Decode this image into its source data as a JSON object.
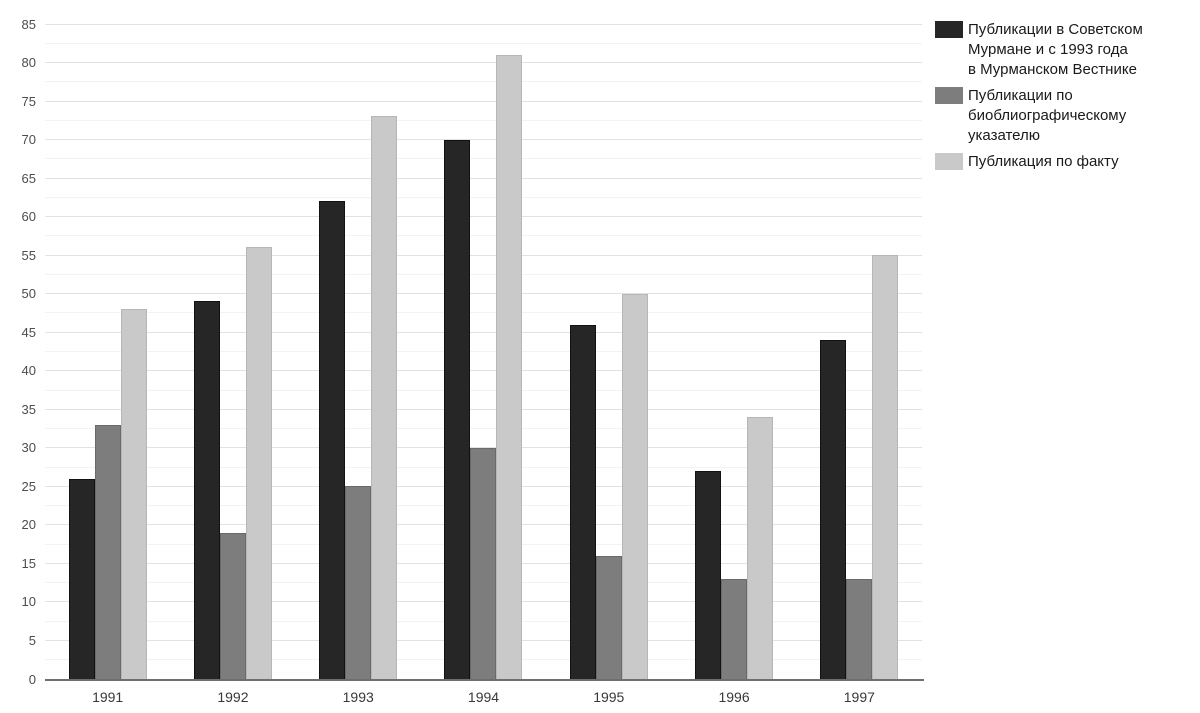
{
  "chart_data": {
    "type": "bar",
    "title": "",
    "xlabel": "",
    "ylabel": "",
    "categories": [
      "1991",
      "1992",
      "1993",
      "1994",
      "1995",
      "1996",
      "1997"
    ],
    "series": [
      {
        "name": "Публикации в Советском Мурмане и с 1993 года в Мурманском Вестнике",
        "legend_lines": "Публикации в Советском\nМурмане и с 1993 года\nв Мурманском Вестнике",
        "color": "#262626",
        "border_color": "#121212",
        "values": [
          26,
          49,
          62,
          70,
          46,
          27,
          44
        ]
      },
      {
        "name": "Публикации по биоблиографическому указателю",
        "legend_lines": "Публикации по\nбиоблиографическому указателю",
        "color": "#7d7d7d",
        "border_color": "#6a6a6a",
        "values": [
          33,
          19,
          25,
          30,
          16,
          13,
          13
        ]
      },
      {
        "name": "Публикация по факту",
        "legend_lines": "Публикация по факту",
        "color": "#c9c9c9",
        "border_color": "#b6b6b6",
        "values": [
          48,
          56,
          73,
          81,
          50,
          34,
          55
        ]
      }
    ],
    "ylim": [
      0,
      85
    ],
    "y_tick_step": 5,
    "y_minor_step": 2.5,
    "grid": true,
    "legend_position": "top-right",
    "style": {
      "major_grid_color": "#e2e2e2",
      "minor_grid_color": "#f3f3f3",
      "axis_line_color": "#6e6e6e",
      "tick_label_color": "#4d4d4d",
      "background": "#ffffff"
    }
  }
}
